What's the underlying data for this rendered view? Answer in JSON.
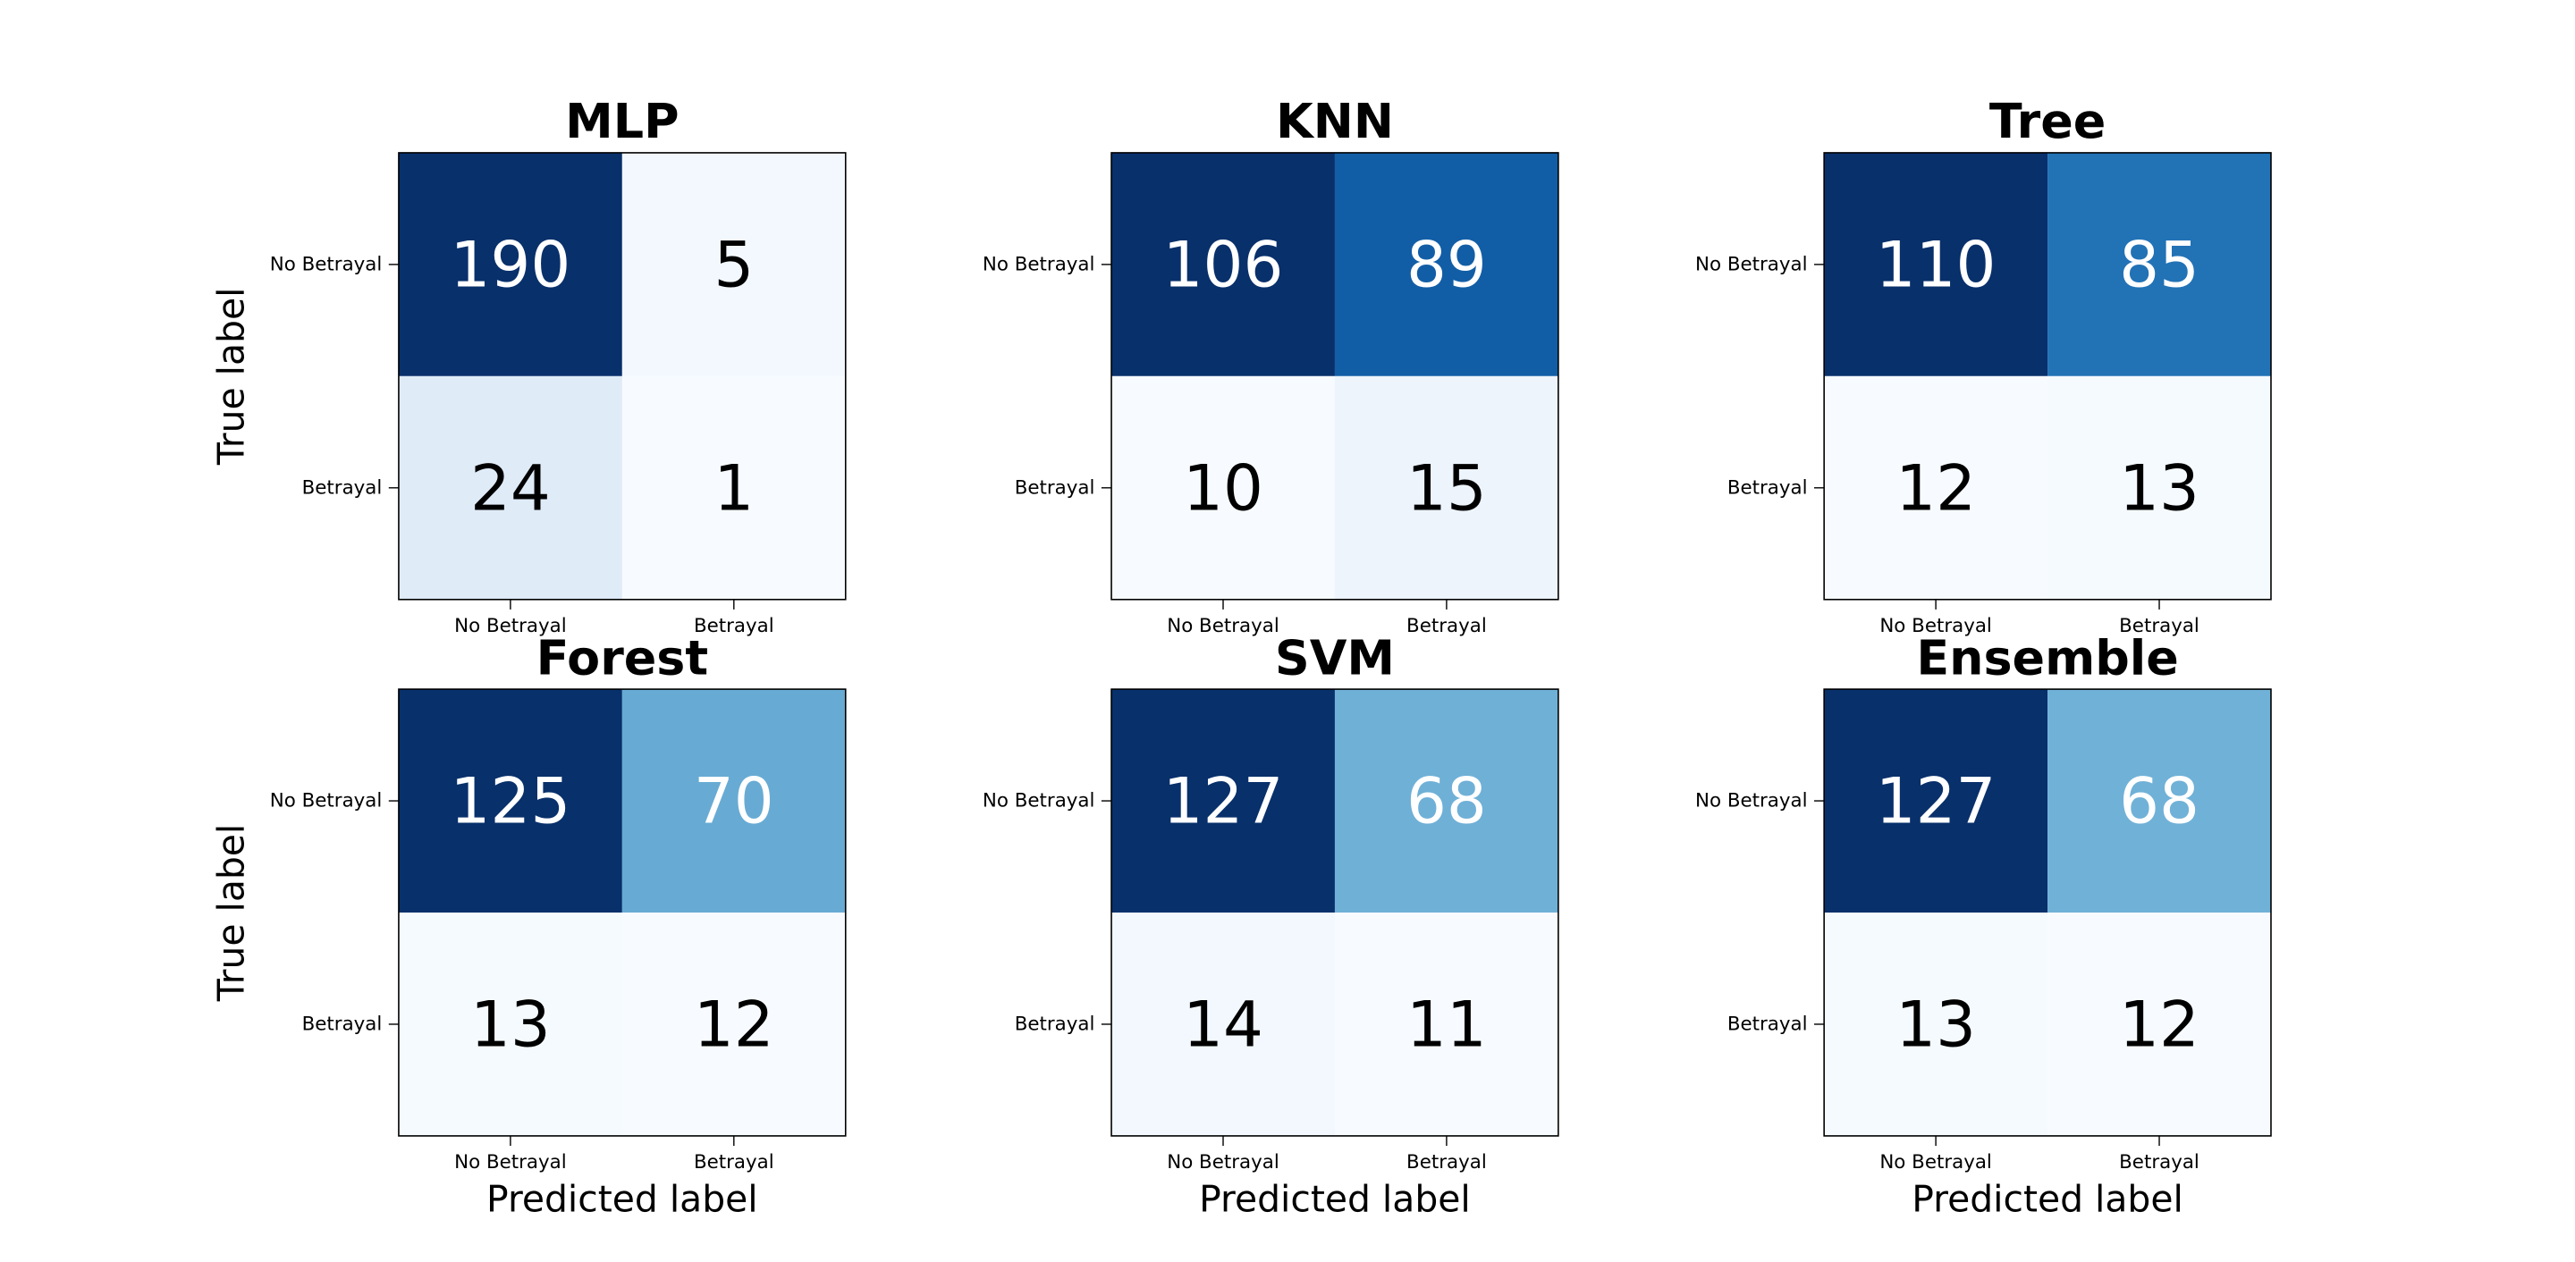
{
  "figure": {
    "row_axis_label": "True label",
    "col_axis_label": "Predicted label"
  },
  "chart_data": [
    {
      "type": "heatmap",
      "title": "MLP",
      "row_labels": [
        "No Betrayal",
        "Betrayal"
      ],
      "col_labels": [
        "No Betrayal",
        "Betrayal"
      ],
      "values": [
        [
          190,
          5
        ],
        [
          24,
          1
        ]
      ],
      "ylabel": "True label",
      "xlabel": "",
      "colormap": "Blues"
    },
    {
      "type": "heatmap",
      "title": "KNN",
      "row_labels": [
        "No Betrayal",
        "Betrayal"
      ],
      "col_labels": [
        "No Betrayal",
        "Betrayal"
      ],
      "values": [
        [
          106,
          89
        ],
        [
          10,
          15
        ]
      ],
      "ylabel": "",
      "xlabel": "",
      "colormap": "Blues"
    },
    {
      "type": "heatmap",
      "title": "Tree",
      "row_labels": [
        "No Betrayal",
        "Betrayal"
      ],
      "col_labels": [
        "No Betrayal",
        "Betrayal"
      ],
      "values": [
        [
          110,
          85
        ],
        [
          12,
          13
        ]
      ],
      "ylabel": "",
      "xlabel": "",
      "colormap": "Blues"
    },
    {
      "type": "heatmap",
      "title": "Forest",
      "row_labels": [
        "No Betrayal",
        "Betrayal"
      ],
      "col_labels": [
        "No Betrayal",
        "Betrayal"
      ],
      "values": [
        [
          125,
          70
        ],
        [
          13,
          12
        ]
      ],
      "ylabel": "True label",
      "xlabel": "Predicted label",
      "colormap": "Blues"
    },
    {
      "type": "heatmap",
      "title": "SVM",
      "row_labels": [
        "No Betrayal",
        "Betrayal"
      ],
      "col_labels": [
        "No Betrayal",
        "Betrayal"
      ],
      "values": [
        [
          127,
          68
        ],
        [
          14,
          11
        ]
      ],
      "ylabel": "",
      "xlabel": "Predicted label",
      "colormap": "Blues"
    },
    {
      "type": "heatmap",
      "title": "Ensemble",
      "row_labels": [
        "No Betrayal",
        "Betrayal"
      ],
      "col_labels": [
        "No Betrayal",
        "Betrayal"
      ],
      "values": [
        [
          127,
          68
        ],
        [
          13,
          12
        ]
      ],
      "ylabel": "",
      "xlabel": "Predicted label",
      "colormap": "Blues"
    }
  ]
}
